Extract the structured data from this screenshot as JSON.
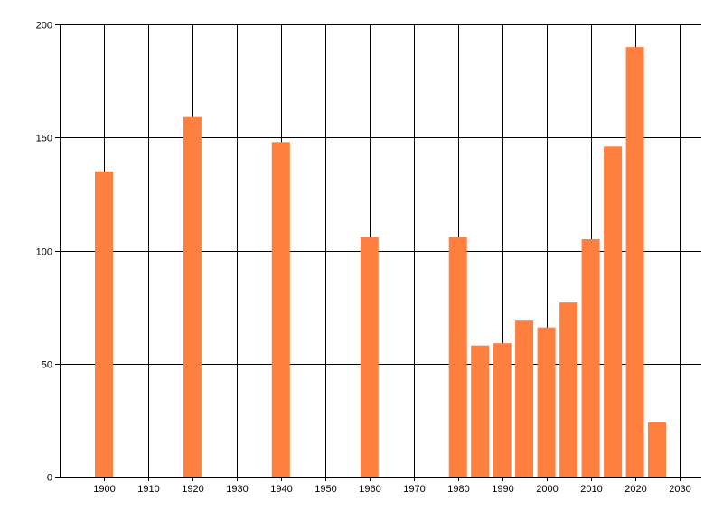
{
  "chart_data": {
    "type": "bar",
    "x": [
      1900,
      1920,
      1940,
      1960,
      1980,
      1985,
      1990,
      1995,
      2000,
      2005,
      2010,
      2015,
      2020,
      2025
    ],
    "values": [
      135,
      159,
      148,
      106,
      106,
      58,
      59,
      69,
      66,
      77,
      105,
      146,
      190,
      24
    ],
    "xlim": [
      1890,
      2035
    ],
    "ylim": [
      0,
      200
    ],
    "x_ticks": [
      1900,
      1910,
      1920,
      1930,
      1940,
      1950,
      1960,
      1970,
      1980,
      1990,
      2000,
      2010,
      2020,
      2030
    ],
    "y_ticks": [
      0,
      50,
      100,
      150,
      200
    ],
    "x_tick_labels": [
      "1900",
      "1910",
      "1920",
      "1930",
      "1940",
      "1950",
      "1960",
      "1970",
      "1980",
      "1990",
      "2000",
      "2010",
      "2020",
      "2030"
    ],
    "y_tick_labels": [
      "0",
      "50",
      "100",
      "150",
      "200"
    ],
    "title": "",
    "xlabel": "",
    "ylabel": "",
    "grid": true,
    "legend": "none",
    "bar_color": "#FF7F3F"
  }
}
